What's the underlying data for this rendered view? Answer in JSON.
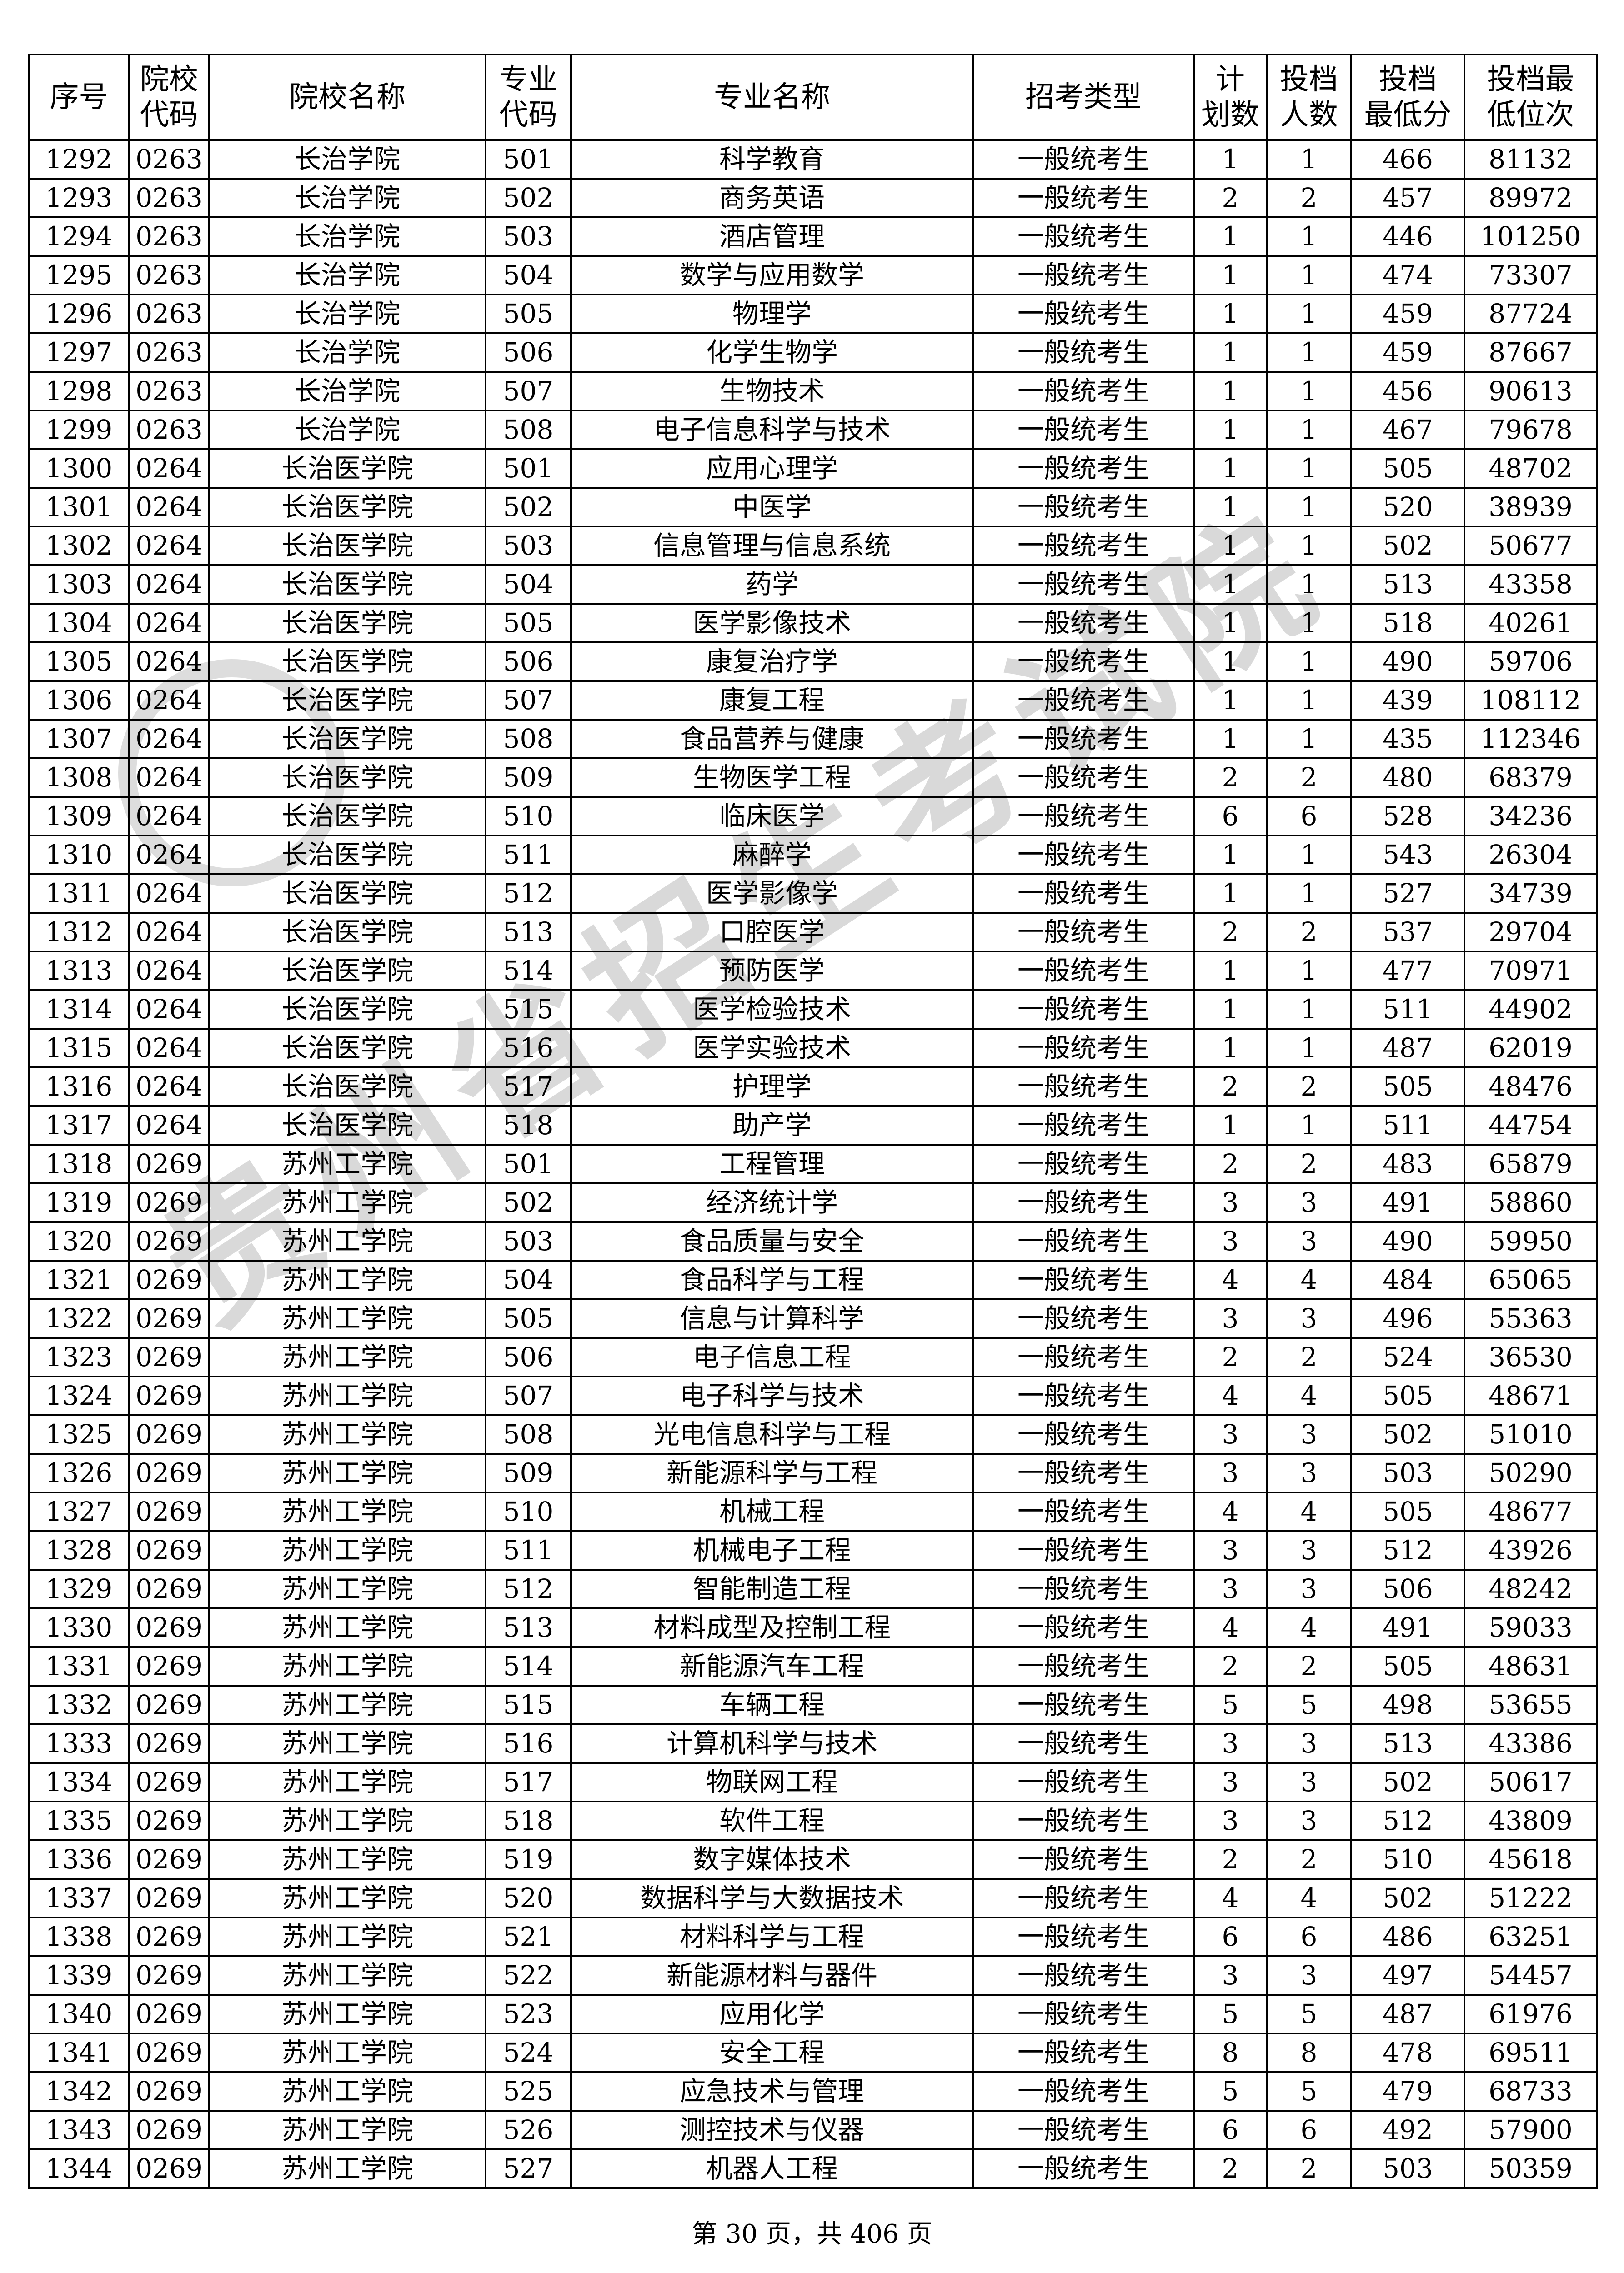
{
  "headers": [
    "序号",
    "院校\n代码",
    "院校名称",
    "专业\n代码",
    "专业名称",
    "招考类型",
    "计\n划数",
    "投档\n人数",
    "投档\n最低分",
    "投档最\n低位次"
  ],
  "rows": [
    [
      "1292",
      "0263",
      "长治学院",
      "501",
      "科学教育",
      "一般统考生",
      "1",
      "1",
      "466",
      "81132"
    ],
    [
      "1293",
      "0263",
      "长治学院",
      "502",
      "商务英语",
      "一般统考生",
      "2",
      "2",
      "457",
      "89972"
    ],
    [
      "1294",
      "0263",
      "长治学院",
      "503",
      "酒店管理",
      "一般统考生",
      "1",
      "1",
      "446",
      "101250"
    ],
    [
      "1295",
      "0263",
      "长治学院",
      "504",
      "数学与应用数学",
      "一般统考生",
      "1",
      "1",
      "474",
      "73307"
    ],
    [
      "1296",
      "0263",
      "长治学院",
      "505",
      "物理学",
      "一般统考生",
      "1",
      "1",
      "459",
      "87724"
    ],
    [
      "1297",
      "0263",
      "长治学院",
      "506",
      "化学生物学",
      "一般统考生",
      "1",
      "1",
      "459",
      "87667"
    ],
    [
      "1298",
      "0263",
      "长治学院",
      "507",
      "生物技术",
      "一般统考生",
      "1",
      "1",
      "456",
      "90613"
    ],
    [
      "1299",
      "0263",
      "长治学院",
      "508",
      "电子信息科学与技术",
      "一般统考生",
      "1",
      "1",
      "467",
      "79678"
    ],
    [
      "1300",
      "0264",
      "长治医学院",
      "501",
      "应用心理学",
      "一般统考生",
      "1",
      "1",
      "505",
      "48702"
    ],
    [
      "1301",
      "0264",
      "长治医学院",
      "502",
      "中医学",
      "一般统考生",
      "1",
      "1",
      "520",
      "38939"
    ],
    [
      "1302",
      "0264",
      "长治医学院",
      "503",
      "信息管理与信息系统",
      "一般统考生",
      "1",
      "1",
      "502",
      "50677"
    ],
    [
      "1303",
      "0264",
      "长治医学院",
      "504",
      "药学",
      "一般统考生",
      "1",
      "1",
      "513",
      "43358"
    ],
    [
      "1304",
      "0264",
      "长治医学院",
      "505",
      "医学影像技术",
      "一般统考生",
      "1",
      "1",
      "518",
      "40261"
    ],
    [
      "1305",
      "0264",
      "长治医学院",
      "506",
      "康复治疗学",
      "一般统考生",
      "1",
      "1",
      "490",
      "59706"
    ],
    [
      "1306",
      "0264",
      "长治医学院",
      "507",
      "康复工程",
      "一般统考生",
      "1",
      "1",
      "439",
      "108112"
    ],
    [
      "1307",
      "0264",
      "长治医学院",
      "508",
      "食品营养与健康",
      "一般统考生",
      "1",
      "1",
      "435",
      "112346"
    ],
    [
      "1308",
      "0264",
      "长治医学院",
      "509",
      "生物医学工程",
      "一般统考生",
      "2",
      "2",
      "480",
      "68379"
    ],
    [
      "1309",
      "0264",
      "长治医学院",
      "510",
      "临床医学",
      "一般统考生",
      "6",
      "6",
      "528",
      "34236"
    ],
    [
      "1310",
      "0264",
      "长治医学院",
      "511",
      "麻醉学",
      "一般统考生",
      "1",
      "1",
      "543",
      "26304"
    ],
    [
      "1311",
      "0264",
      "长治医学院",
      "512",
      "医学影像学",
      "一般统考生",
      "1",
      "1",
      "527",
      "34739"
    ],
    [
      "1312",
      "0264",
      "长治医学院",
      "513",
      "口腔医学",
      "一般统考生",
      "2",
      "2",
      "537",
      "29704"
    ],
    [
      "1313",
      "0264",
      "长治医学院",
      "514",
      "预防医学",
      "一般统考生",
      "1",
      "1",
      "477",
      "70971"
    ],
    [
      "1314",
      "0264",
      "长治医学院",
      "515",
      "医学检验技术",
      "一般统考生",
      "1",
      "1",
      "511",
      "44902"
    ],
    [
      "1315",
      "0264",
      "长治医学院",
      "516",
      "医学实验技术",
      "一般统考生",
      "1",
      "1",
      "487",
      "62019"
    ],
    [
      "1316",
      "0264",
      "长治医学院",
      "517",
      "护理学",
      "一般统考生",
      "2",
      "2",
      "505",
      "48476"
    ],
    [
      "1317",
      "0264",
      "长治医学院",
      "518",
      "助产学",
      "一般统考生",
      "1",
      "1",
      "511",
      "44754"
    ],
    [
      "1318",
      "0269",
      "苏州工学院",
      "501",
      "工程管理",
      "一般统考生",
      "2",
      "2",
      "483",
      "65879"
    ],
    [
      "1319",
      "0269",
      "苏州工学院",
      "502",
      "经济统计学",
      "一般统考生",
      "3",
      "3",
      "491",
      "58860"
    ],
    [
      "1320",
      "0269",
      "苏州工学院",
      "503",
      "食品质量与安全",
      "一般统考生",
      "3",
      "3",
      "490",
      "59950"
    ],
    [
      "1321",
      "0269",
      "苏州工学院",
      "504",
      "食品科学与工程",
      "一般统考生",
      "4",
      "4",
      "484",
      "65065"
    ],
    [
      "1322",
      "0269",
      "苏州工学院",
      "505",
      "信息与计算科学",
      "一般统考生",
      "3",
      "3",
      "496",
      "55363"
    ],
    [
      "1323",
      "0269",
      "苏州工学院",
      "506",
      "电子信息工程",
      "一般统考生",
      "2",
      "2",
      "524",
      "36530"
    ],
    [
      "1324",
      "0269",
      "苏州工学院",
      "507",
      "电子科学与技术",
      "一般统考生",
      "4",
      "4",
      "505",
      "48671"
    ],
    [
      "1325",
      "0269",
      "苏州工学院",
      "508",
      "光电信息科学与工程",
      "一般统考生",
      "3",
      "3",
      "502",
      "51010"
    ],
    [
      "1326",
      "0269",
      "苏州工学院",
      "509",
      "新能源科学与工程",
      "一般统考生",
      "3",
      "3",
      "503",
      "50290"
    ],
    [
      "1327",
      "0269",
      "苏州工学院",
      "510",
      "机械工程",
      "一般统考生",
      "4",
      "4",
      "505",
      "48677"
    ],
    [
      "1328",
      "0269",
      "苏州工学院",
      "511",
      "机械电子工程",
      "一般统考生",
      "3",
      "3",
      "512",
      "43926"
    ],
    [
      "1329",
      "0269",
      "苏州工学院",
      "512",
      "智能制造工程",
      "一般统考生",
      "3",
      "3",
      "506",
      "48242"
    ],
    [
      "1330",
      "0269",
      "苏州工学院",
      "513",
      "材料成型及控制工程",
      "一般统考生",
      "4",
      "4",
      "491",
      "59033"
    ],
    [
      "1331",
      "0269",
      "苏州工学院",
      "514",
      "新能源汽车工程",
      "一般统考生",
      "2",
      "2",
      "505",
      "48631"
    ],
    [
      "1332",
      "0269",
      "苏州工学院",
      "515",
      "车辆工程",
      "一般统考生",
      "5",
      "5",
      "498",
      "53655"
    ],
    [
      "1333",
      "0269",
      "苏州工学院",
      "516",
      "计算机科学与技术",
      "一般统考生",
      "3",
      "3",
      "513",
      "43386"
    ],
    [
      "1334",
      "0269",
      "苏州工学院",
      "517",
      "物联网工程",
      "一般统考生",
      "3",
      "3",
      "502",
      "50617"
    ],
    [
      "1335",
      "0269",
      "苏州工学院",
      "518",
      "软件工程",
      "一般统考生",
      "3",
      "3",
      "512",
      "43809"
    ],
    [
      "1336",
      "0269",
      "苏州工学院",
      "519",
      "数字媒体技术",
      "一般统考生",
      "2",
      "2",
      "510",
      "45618"
    ],
    [
      "1337",
      "0269",
      "苏州工学院",
      "520",
      "数据科学与大数据技术",
      "一般统考生",
      "4",
      "4",
      "502",
      "51222"
    ],
    [
      "1338",
      "0269",
      "苏州工学院",
      "521",
      "材料科学与工程",
      "一般统考生",
      "6",
      "6",
      "486",
      "63251"
    ],
    [
      "1339",
      "0269",
      "苏州工学院",
      "522",
      "新能源材料与器件",
      "一般统考生",
      "3",
      "3",
      "497",
      "54457"
    ],
    [
      "1340",
      "0269",
      "苏州工学院",
      "523",
      "应用化学",
      "一般统考生",
      "5",
      "5",
      "487",
      "61976"
    ],
    [
      "1341",
      "0269",
      "苏州工学院",
      "524",
      "安全工程",
      "一般统考生",
      "8",
      "8",
      "478",
      "69511"
    ],
    [
      "1342",
      "0269",
      "苏州工学院",
      "525",
      "应急技术与管理",
      "一般统考生",
      "5",
      "5",
      "479",
      "68733"
    ],
    [
      "1343",
      "0269",
      "苏州工学院",
      "526",
      "测控技术与仪器",
      "一般统考生",
      "6",
      "6",
      "492",
      "57900"
    ],
    [
      "1344",
      "0269",
      "苏州工学院",
      "527",
      "机器人工程",
      "一般统考生",
      "2",
      "2",
      "503",
      "50359"
    ]
  ],
  "watermark": "贵州省招生考试院",
  "footer": "第 30 页，共 406 页"
}
